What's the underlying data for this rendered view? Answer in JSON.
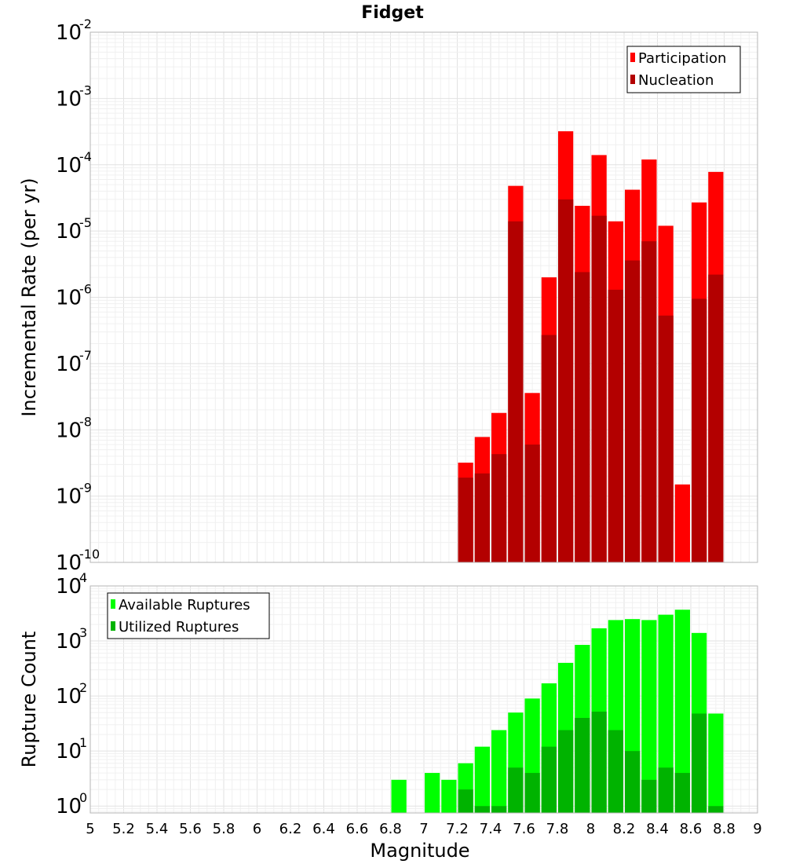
{
  "chart_data": [
    {
      "type": "bar",
      "title": "Fidget",
      "xlabel": "",
      "ylabel": "Incremental Rate (per yr)",
      "y_scale": "log",
      "ylim": [
        1e-10,
        0.01
      ],
      "xlim": [
        5,
        9
      ],
      "bar_width": 0.1,
      "legend_position": "top-right",
      "y_ticks": [
        {
          "base": "10",
          "exp": "-10"
        },
        {
          "base": "10",
          "exp": "-9"
        },
        {
          "base": "10",
          "exp": "-8"
        },
        {
          "base": "10",
          "exp": "-7"
        },
        {
          "base": "10",
          "exp": "-6"
        },
        {
          "base": "10",
          "exp": "-5"
        },
        {
          "base": "10",
          "exp": "-4"
        },
        {
          "base": "10",
          "exp": "-3"
        },
        {
          "base": "10",
          "exp": "-2"
        }
      ],
      "series": [
        {
          "name": "Participation",
          "color": "#ff0000",
          "x": [
            7.25,
            7.35,
            7.45,
            7.55,
            7.65,
            7.75,
            7.85,
            7.95,
            8.05,
            8.15,
            8.25,
            8.35,
            8.45,
            8.55,
            8.65,
            8.75
          ],
          "values": [
            3.2e-09,
            7.8e-09,
            1.8e-08,
            4.8e-05,
            3.6e-08,
            2e-06,
            0.00032,
            2.4e-05,
            0.00014,
            1.4e-05,
            4.2e-05,
            0.00012,
            1.2e-05,
            1.5e-09,
            2.7e-05,
            7.8e-05
          ]
        },
        {
          "name": "Nucleation",
          "color": "#b30000",
          "x": [
            7.25,
            7.35,
            7.45,
            7.55,
            7.65,
            7.75,
            7.85,
            7.95,
            8.05,
            8.15,
            8.25,
            8.35,
            8.45,
            8.55,
            8.65,
            8.75
          ],
          "values": [
            1.9e-09,
            2.2e-09,
            4.3e-09,
            1.4e-05,
            6e-09,
            2.7e-07,
            3e-05,
            2.4e-06,
            1.7e-05,
            1.3e-06,
            3.6e-06,
            7e-06,
            5.3e-07,
            null,
            9.5e-07,
            2.2e-06
          ]
        }
      ]
    },
    {
      "type": "bar",
      "title": "",
      "xlabel": "Magnitude",
      "ylabel": "Rupture Count",
      "y_scale": "log",
      "ylim": [
        0.75,
        10000
      ],
      "xlim": [
        5,
        9
      ],
      "bar_width": 0.1,
      "legend_position": "top-left",
      "x_ticks": [
        "5",
        "5.2",
        "5.4",
        "5.6",
        "5.8",
        "6",
        "6.2",
        "6.4",
        "6.6",
        "6.8",
        "7",
        "7.2",
        "7.4",
        "7.6",
        "7.8",
        "8",
        "8.2",
        "8.4",
        "8.6",
        "8.8",
        "9"
      ],
      "y_ticks": [
        {
          "base": "10",
          "exp": "0"
        },
        {
          "base": "10",
          "exp": "1"
        },
        {
          "base": "10",
          "exp": "2"
        },
        {
          "base": "10",
          "exp": "3"
        },
        {
          "base": "10",
          "exp": "4"
        }
      ],
      "series": [
        {
          "name": "Available Ruptures",
          "color": "#00ff00",
          "x": [
            6.85,
            7.05,
            7.15,
            7.25,
            7.35,
            7.45,
            7.55,
            7.65,
            7.75,
            7.85,
            7.95,
            8.05,
            8.15,
            8.25,
            8.35,
            8.45,
            8.55,
            8.65,
            8.75
          ],
          "values": [
            3,
            4,
            3,
            6,
            12,
            24,
            50,
            90,
            170,
            400,
            850,
            1700,
            2400,
            2500,
            2400,
            3000,
            3700,
            1400,
            48
          ]
        },
        {
          "name": "Utilized Ruptures",
          "color": "#00b300",
          "x": [
            7.25,
            7.35,
            7.45,
            7.55,
            7.65,
            7.75,
            7.85,
            7.95,
            8.05,
            8.15,
            8.25,
            8.35,
            8.45,
            8.55,
            8.65,
            8.75
          ],
          "values": [
            2,
            1,
            1,
            5,
            4,
            12,
            24,
            40,
            52,
            24,
            10,
            3,
            5,
            4,
            48,
            1
          ]
        }
      ]
    }
  ]
}
